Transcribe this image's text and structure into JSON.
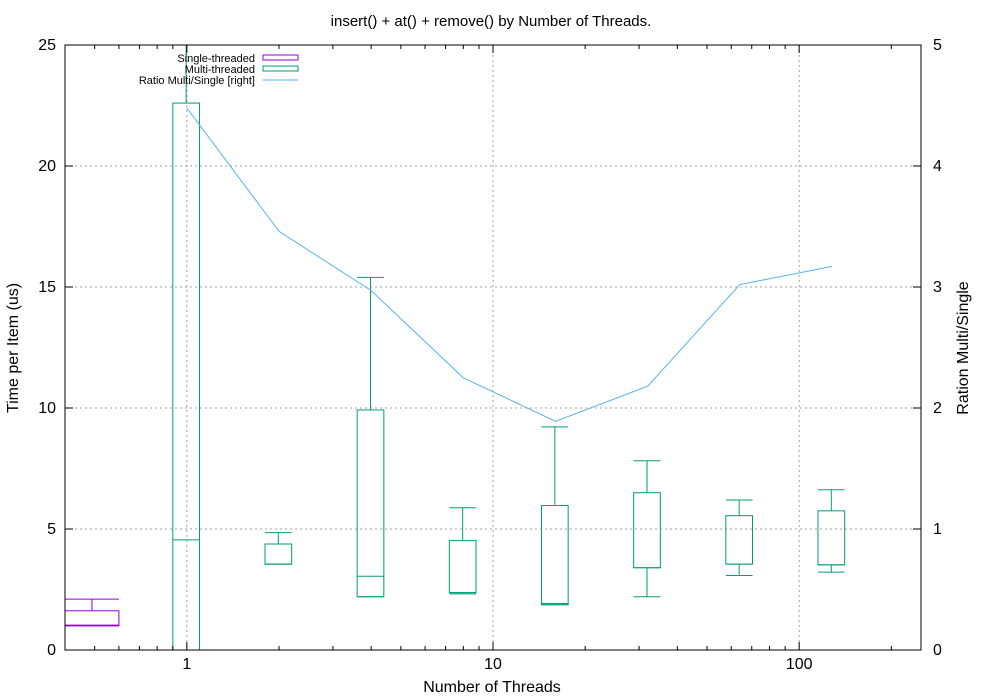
{
  "chart_data": {
    "type": "boxplot",
    "title": "insert() + at() + remove() by Number of Threads.",
    "xlabel": "Number of Threads",
    "ylabel": "Time per Item (us)",
    "y2label": "Ration Multi/Single",
    "x_scale": "log",
    "xlim": [
      0.4,
      250
    ],
    "ylim": [
      0,
      25
    ],
    "y2lim": [
      0,
      5
    ],
    "grid": true,
    "legend_position": "top-left",
    "x_ticks": [
      {
        "value": 1,
        "label": "1"
      },
      {
        "value": 10,
        "label": "10"
      },
      {
        "value": 100,
        "label": "100"
      }
    ],
    "y_ticks": [
      {
        "value": 0,
        "label": "0"
      },
      {
        "value": 5,
        "label": "5"
      },
      {
        "value": 10,
        "label": "10"
      },
      {
        "value": 15,
        "label": "15"
      },
      {
        "value": 20,
        "label": "20"
      },
      {
        "value": 25,
        "label": "25"
      }
    ],
    "y2_ticks": [
      {
        "value": 0,
        "label": "0"
      },
      {
        "value": 1,
        "label": "1"
      },
      {
        "value": 2,
        "label": "2"
      },
      {
        "value": 3,
        "label": "3"
      },
      {
        "value": 4,
        "label": "4"
      },
      {
        "value": 5,
        "label": "5"
      }
    ],
    "series": [
      {
        "name": "Single-threaded",
        "kind": "box",
        "axis": "left",
        "color": "#9400d3",
        "boxes": [
          {
            "x0": 0.4,
            "x1": 0.6,
            "whisker_low": 1.0,
            "q1": 1.0,
            "median": 1.03,
            "q3": 1.62,
            "whisker_high": 2.1
          }
        ]
      },
      {
        "name": "Multi-threaded",
        "kind": "box",
        "axis": "left",
        "color": "#009e73",
        "boxes": [
          {
            "x0": 0.9,
            "x1": 1.1,
            "whisker_low": 0,
            "q1": 0,
            "median": 4.55,
            "q3": 22.6,
            "whisker_high": 25
          },
          {
            "x0": 1.8,
            "x1": 2.2,
            "whisker_low": 3.55,
            "q1": 3.55,
            "median": 3.55,
            "q3": 4.38,
            "whisker_high": 4.85
          },
          {
            "x0": 3.6,
            "x1": 4.4,
            "whisker_low": 2.2,
            "q1": 2.2,
            "median": 3.05,
            "q3": 9.92,
            "whisker_high": 15.4
          },
          {
            "x0": 7.2,
            "x1": 8.8,
            "whisker_low": 2.32,
            "q1": 2.37,
            "median": 2.37,
            "q3": 4.52,
            "whisker_high": 5.88
          },
          {
            "x0": 14.4,
            "x1": 17.6,
            "whisker_low": 1.87,
            "q1": 1.87,
            "median": 1.92,
            "q3": 5.97,
            "whisker_high": 9.22
          },
          {
            "x0": 28.8,
            "x1": 35.2,
            "whisker_low": 2.2,
            "q1": 3.4,
            "median": 3.4,
            "q3": 6.5,
            "whisker_high": 7.82
          },
          {
            "x0": 57.6,
            "x1": 70.4,
            "whisker_low": 3.08,
            "q1": 3.55,
            "median": 3.55,
            "q3": 5.55,
            "whisker_high": 6.2
          },
          {
            "x0": 115.2,
            "x1": 140.8,
            "whisker_low": 3.22,
            "q1": 3.52,
            "median": 3.52,
            "q3": 5.75,
            "whisker_high": 6.62
          }
        ]
      },
      {
        "name": "Ratio Multi/Single [right]",
        "kind": "line",
        "axis": "right",
        "color": "#56b4e9",
        "x": [
          1,
          2,
          4,
          8,
          16,
          32,
          64,
          128
        ],
        "values": [
          4.48,
          3.46,
          2.97,
          2.25,
          1.89,
          2.18,
          3.02,
          3.17
        ]
      }
    ]
  }
}
